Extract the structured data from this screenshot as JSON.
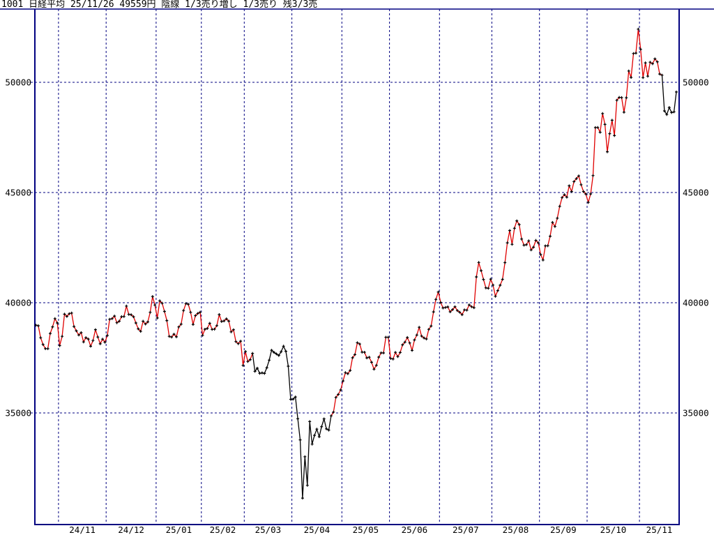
{
  "window": {
    "title": "1001 日経平均 25/11/26 49559円 陰線 1/3売り増し 1/3売り 残3/3売"
  },
  "chart_data": {
    "type": "line",
    "title": "1001 日経平均",
    "symbol": "1001",
    "name": "日経平均",
    "last_date": "25/11/26",
    "last_close": 49559,
    "candle": "陰線",
    "signal": "1/3売り増し 1/3売り 残3/3売",
    "grid": "dashed",
    "legend": "none",
    "ylim": [
      29900,
      53300
    ],
    "yticks": [
      50000,
      45000,
      40000,
      35000
    ],
    "ytick_labels": [
      "50000",
      "45000",
      "40000",
      "35000"
    ],
    "x_labels": [
      "24/11",
      "24/12",
      "25/01",
      "25/02",
      "25/03",
      "25/04",
      "25/05",
      "25/06",
      "25/07",
      "25/08",
      "25/09",
      "25/10",
      "25/11"
    ],
    "month_start_indices": [
      10,
      30,
      51,
      70,
      88,
      108,
      129,
      149,
      170,
      192,
      212,
      232,
      254
    ],
    "values": [
      38982,
      38955,
      38412,
      38105,
      37914,
      37913,
      38606,
      38904,
      39277,
      39081,
      38053,
      38475,
      39481,
      39381,
      39500,
      39533,
      38921,
      38721,
      38536,
      38643,
      38220,
      38414,
      38352,
      38026,
      38284,
      38780,
      38442,
      38135,
      38349,
      38208,
      38514,
      39249,
      39277,
      39396,
      39091,
      39160,
      39368,
      39372,
      39849,
      39470,
      39457,
      39364,
      39082,
      38813,
      38702,
      39161,
      39036,
      39130,
      39568,
      40281,
      39895,
      39307,
      40084,
      39981,
      39605,
      39190,
      38474,
      38444,
      38573,
      38451,
      38903,
      39027,
      39646,
      39959,
      39932,
      39566,
      39017,
      39414,
      39514,
      39572,
      38520,
      38798,
      38831,
      39066,
      38787,
      38801,
      38963,
      39461,
      39149,
      39174,
      39270,
      39164,
      38678,
      38776,
      38237,
      38143,
      38256,
      37156,
      37785,
      37331,
      37418,
      37704,
      36887,
      37028,
      36793,
      36819,
      36790,
      37053,
      37396,
      37845,
      37751,
      37677,
      37608,
      37780,
      38027,
      37799,
      37120,
      35617,
      35624,
      35725,
      34735,
      33780,
      31136,
      33012,
      31714,
      34609,
      33585,
      33982,
      34267,
      33920,
      34377,
      34730,
      34279,
      34220,
      34868,
      35039,
      35706,
      35840,
      36045,
      36452,
      36830,
      36779,
      36928,
      37503,
      37644,
      38183,
      38128,
      37755,
      37754,
      37498,
      37529,
      37298,
      36985,
      37160,
      37532,
      37724,
      37722,
      38433,
      38432,
      37470,
      37447,
      37747,
      37554,
      37741,
      38088,
      38211,
      38421,
      38173,
      37834,
      38311,
      38536,
      38885,
      38488,
      38403,
      38354,
      38790,
      38942,
      39584,
      40150,
      40487,
      40012,
      39762,
      39786,
      39811,
      39588,
      39688,
      39821,
      39646,
      39570,
      39460,
      39678,
      39663,
      39902,
      39819,
      39775,
      41172,
      41826,
      41456,
      41057,
      40674,
      40654,
      41070,
      40800,
      40290,
      40550,
      40795,
      41059,
      41820,
      42718,
      43274,
      42649,
      43378,
      43714,
      43546,
      42888,
      42610,
      42633,
      42807,
      42394,
      42520,
      42828,
      42718,
      42188,
      41938,
      42580,
      42581,
      43018,
      43643,
      43459,
      43837,
      44372,
      44768,
      44902,
      44790,
      45303,
      45045,
      45493,
      45630,
      45754,
      45355,
      45044,
      44933,
      44551,
      44936,
      45770,
      47945,
      47950,
      47734,
      48581,
      48089,
      46847,
      47672,
      48278,
      47583,
      49186,
      49317,
      49308,
      48642,
      49300,
      50513,
      50220,
      51308,
      51326,
      52412,
      51497,
      50212,
      50883,
      50277,
      50911,
      50842,
      51063,
      50929,
      50377,
      50323,
      48702,
      48537,
      48858,
      48625,
      48659,
      49559
    ],
    "down_ranges": [
      [
        92,
        124
      ],
      [
        264,
        269
      ]
    ],
    "colors": {
      "up": "#e00000",
      "down": "#000000",
      "marker": "#000000",
      "grid": "#000080",
      "axis": "#000080",
      "text": "#000000",
      "background": "#ffffff"
    }
  }
}
